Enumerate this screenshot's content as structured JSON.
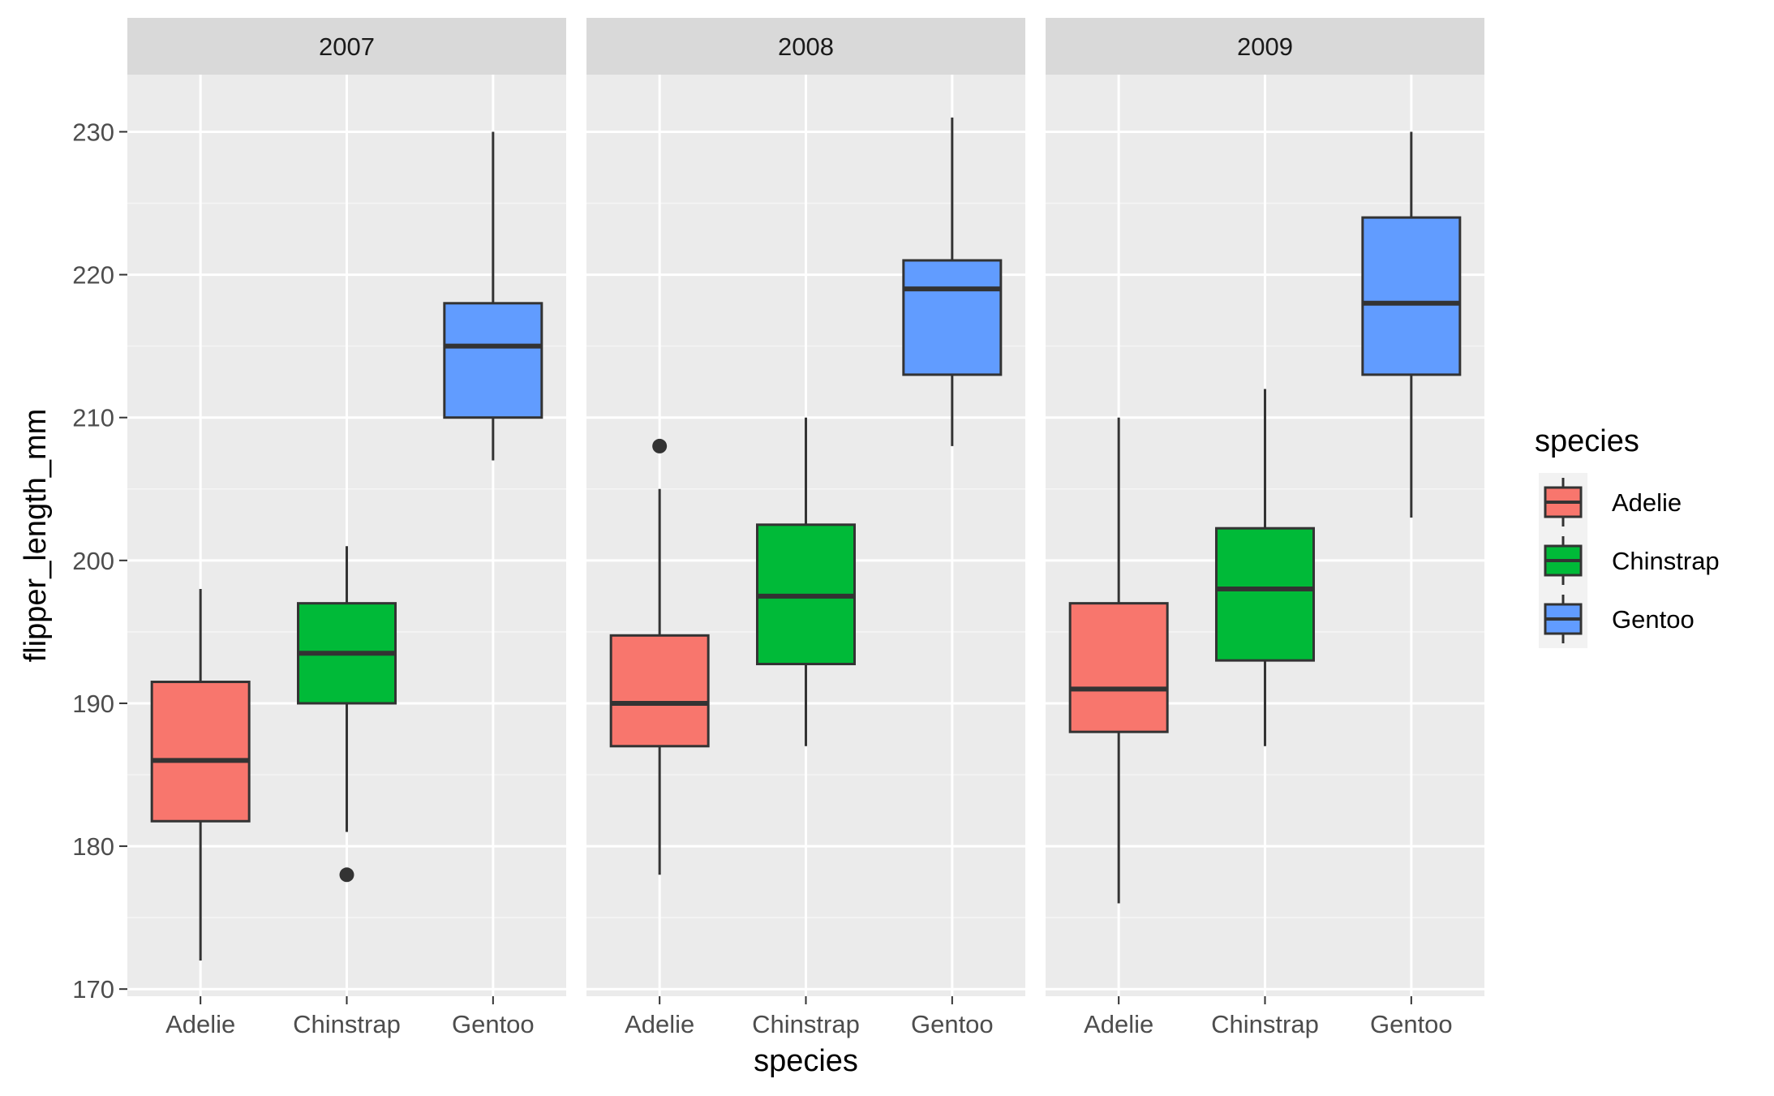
{
  "chart_data": {
    "type": "boxplot",
    "xlabel": "species",
    "ylabel": "flipper_length_mm",
    "ylim": [
      169.5,
      234
    ],
    "yticks": [
      170,
      180,
      190,
      200,
      210,
      220,
      230
    ],
    "categories": [
      "Adelie",
      "Chinstrap",
      "Gentoo"
    ],
    "grid": true,
    "legend": {
      "title": "species",
      "position": "right",
      "entries": [
        {
          "label": "Adelie",
          "color": "#F8766D"
        },
        {
          "label": "Chinstrap",
          "color": "#00BA38"
        },
        {
          "label": "Gentoo",
          "color": "#619CFF"
        }
      ]
    },
    "facets": [
      {
        "label": "2007",
        "boxes": [
          {
            "species": "Adelie",
            "min": 172,
            "q1": 181.75,
            "median": 186,
            "q3": 191.5,
            "max": 198,
            "outliers": []
          },
          {
            "species": "Chinstrap",
            "min": 181,
            "q1": 190,
            "median": 193.5,
            "q3": 197,
            "max": 201,
            "outliers": [
              178
            ]
          },
          {
            "species": "Gentoo",
            "min": 207,
            "q1": 210,
            "median": 215,
            "q3": 218,
            "max": 230,
            "outliers": []
          }
        ]
      },
      {
        "label": "2008",
        "boxes": [
          {
            "species": "Adelie",
            "min": 178,
            "q1": 187,
            "median": 190,
            "q3": 194.75,
            "max": 205,
            "outliers": [
              208
            ]
          },
          {
            "species": "Chinstrap",
            "min": 187,
            "q1": 192.75,
            "median": 197.5,
            "q3": 202.5,
            "max": 210,
            "outliers": []
          },
          {
            "species": "Gentoo",
            "min": 208,
            "q1": 213,
            "median": 219,
            "q3": 221,
            "max": 231,
            "outliers": []
          }
        ]
      },
      {
        "label": "2009",
        "boxes": [
          {
            "species": "Adelie",
            "min": 176,
            "q1": 188,
            "median": 191,
            "q3": 197,
            "max": 210,
            "outliers": []
          },
          {
            "species": "Chinstrap",
            "min": 187,
            "q1": 193,
            "median": 198,
            "q3": 202.25,
            "max": 212,
            "outliers": []
          },
          {
            "species": "Gentoo",
            "min": 203,
            "q1": 213,
            "median": 218,
            "q3": 224,
            "max": 230,
            "outliers": []
          }
        ]
      }
    ],
    "colors": {
      "panel_bg": "#EBEBEB",
      "strip_bg": "#D9D9D9",
      "grid_major": "#FFFFFF",
      "grid_minor": "#F5F5F5",
      "axis_text": "#4D4D4D",
      "box_outline": "#333333"
    }
  }
}
